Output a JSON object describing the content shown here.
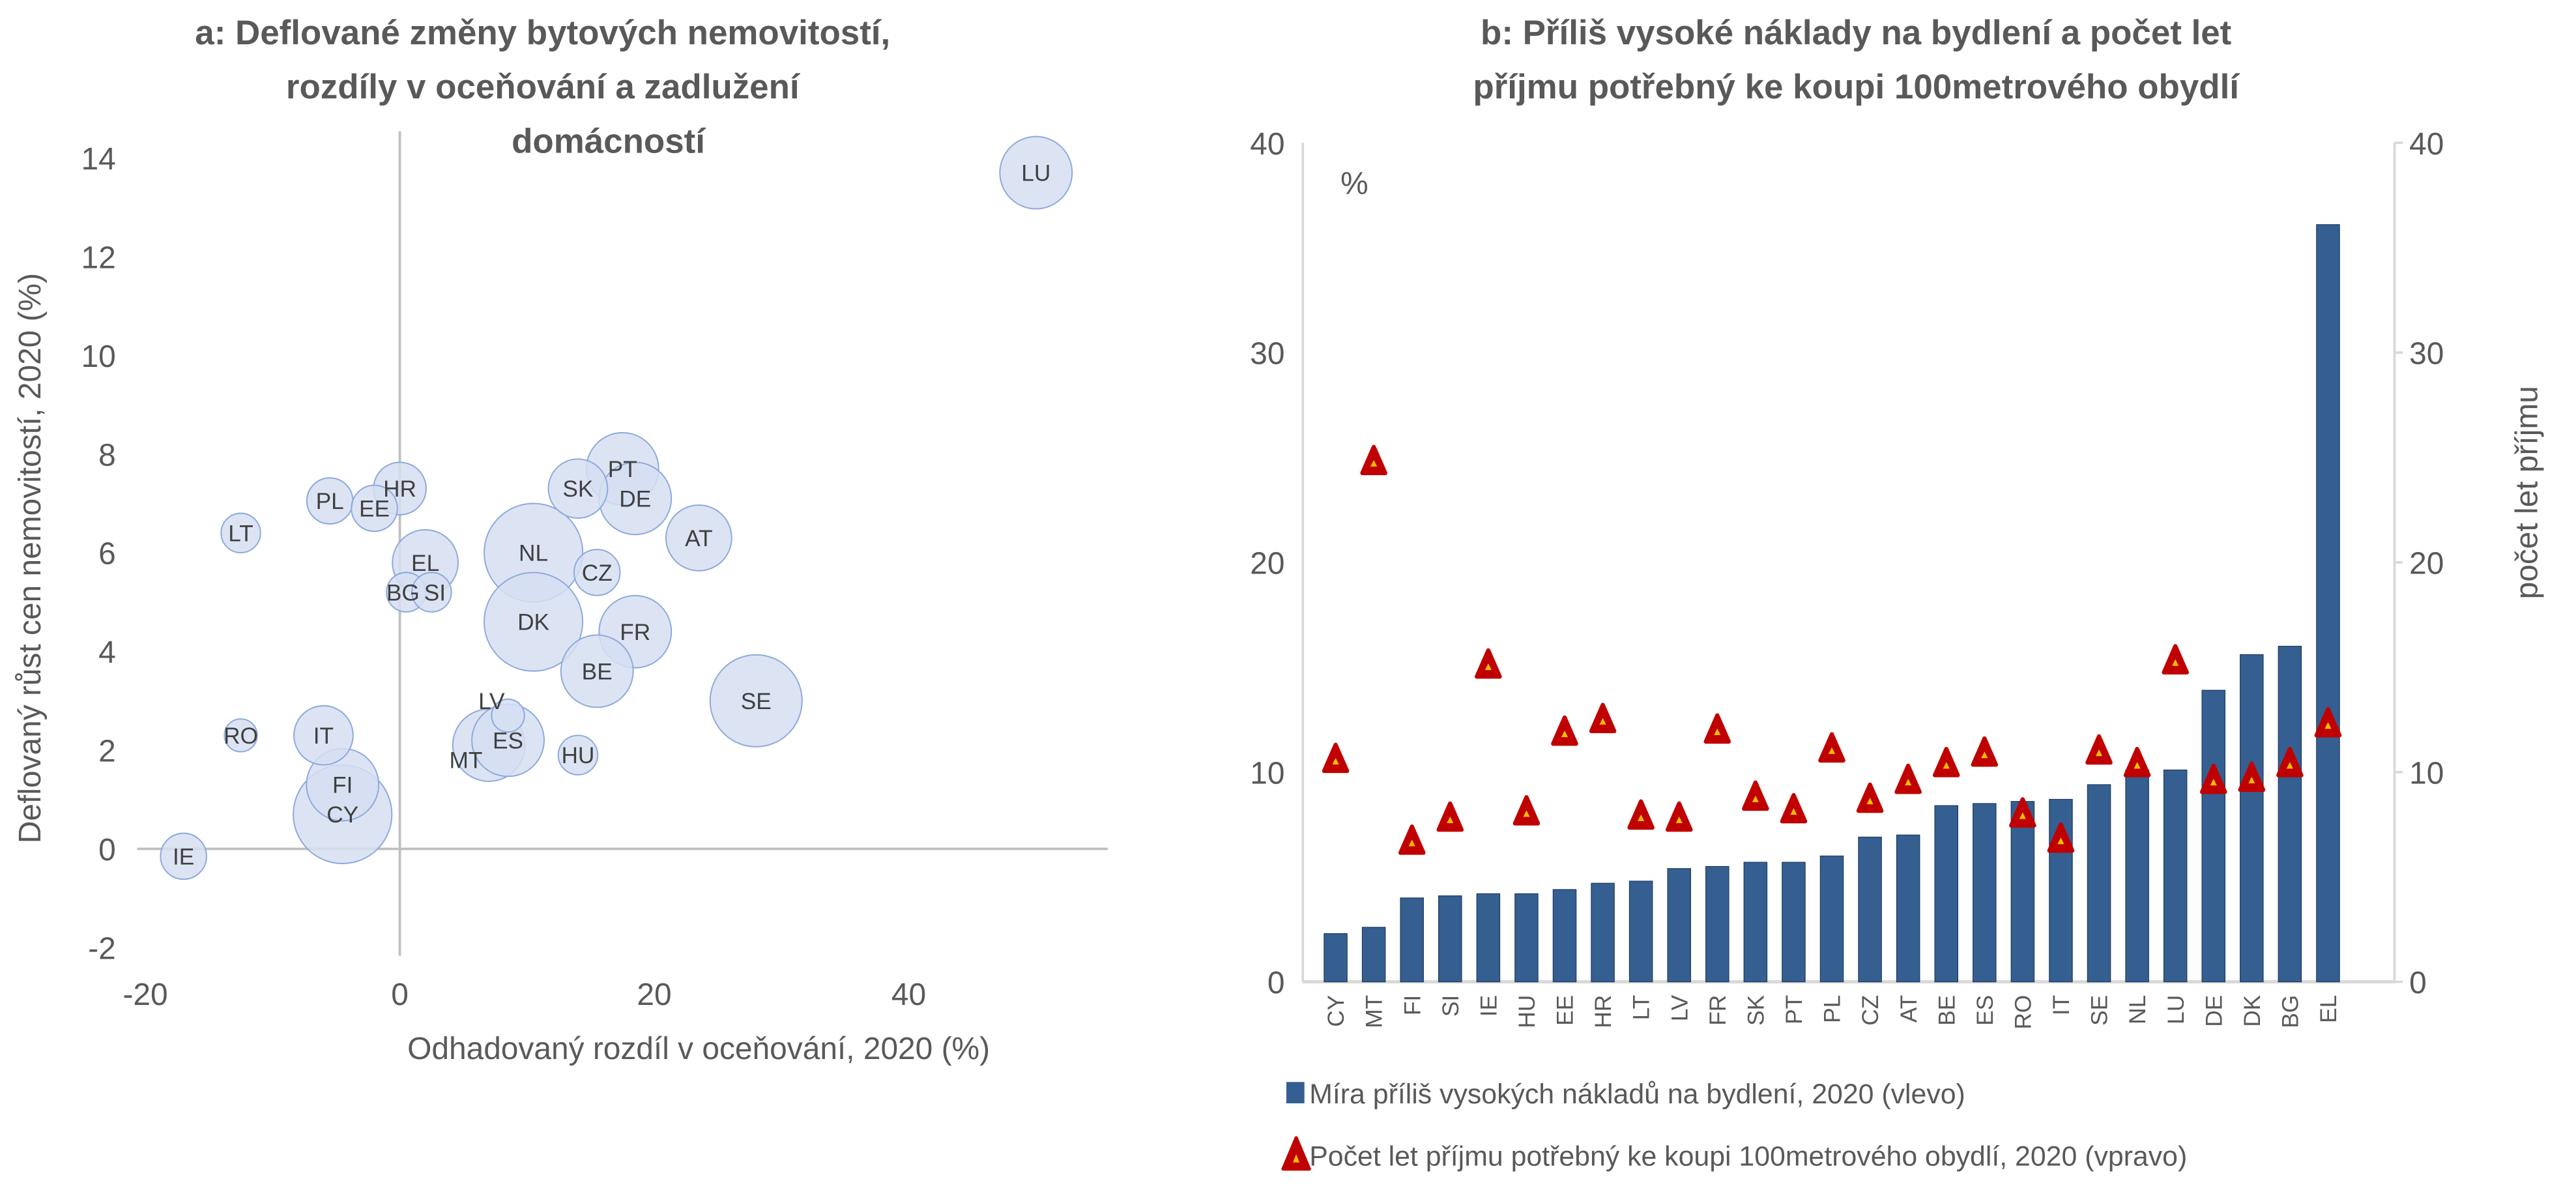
{
  "colors": {
    "bubble_fill": "#d6dff2",
    "bubble_stroke": "#8faadc",
    "bar": "#355f91",
    "marker": "#c00000",
    "marker_inner": "#ffc000",
    "axis": "#bfbfbf",
    "text": "#595959"
  },
  "chart_data": [
    {
      "type": "scatter",
      "subtype": "bubble",
      "title_lines": [
        "a: Deflované změny bytových nemovitostí,",
        "rozdíly v oceňování a zadlužení",
        "domácností"
      ],
      "xlabel": "Odhadovaný rozdíl v oceňování, 2020 (%)",
      "ylabel": "Deflovaný růst cen nemovitostí, 2020 (%)",
      "xlim": [
        -20,
        55
      ],
      "ylim": [
        -2,
        15
      ],
      "xticks": [
        "-20",
        "0",
        "20",
        "40"
      ],
      "xtick_values": [
        -20,
        0,
        20,
        40
      ],
      "yticks": [
        "-2",
        "0",
        "2",
        "4",
        "6",
        "8",
        "10",
        "12",
        "14"
      ],
      "ytick_values": [
        -2,
        0,
        2,
        4,
        6,
        8,
        10,
        12,
        14
      ],
      "points": [
        {
          "label": "LU",
          "x": 50,
          "y": 13.7,
          "size": 22
        },
        {
          "label": "LT",
          "x": -12.5,
          "y": 6.4,
          "size": 12
        },
        {
          "label": "PL",
          "x": -5.5,
          "y": 7.05,
          "size": 14
        },
        {
          "label": "EE",
          "x": -2,
          "y": 6.9,
          "size": 14
        },
        {
          "label": "HR",
          "x": 0,
          "y": 7.3,
          "size": 16
        },
        {
          "label": "EL",
          "x": 2,
          "y": 5.8,
          "size": 20
        },
        {
          "label": "BG",
          "x": 0.5,
          "y": 5.2,
          "size": 12
        },
        {
          "label": "SI",
          "x": 2.5,
          "y": 5.2,
          "size": 12
        },
        {
          "label": "NL",
          "x": 10.5,
          "y": 6.0,
          "size": 30
        },
        {
          "label": "DK",
          "x": 10.5,
          "y": 4.6,
          "size": 30
        },
        {
          "label": "SK",
          "x": 14,
          "y": 7.3,
          "size": 18
        },
        {
          "label": "PT",
          "x": 17.5,
          "y": 7.7,
          "size": 22
        },
        {
          "label": "DE",
          "x": 18.5,
          "y": 7.1,
          "size": 22
        },
        {
          "label": "AT",
          "x": 23.5,
          "y": 6.3,
          "size": 20
        },
        {
          "label": "CZ",
          "x": 15.5,
          "y": 5.6,
          "size": 14
        },
        {
          "label": "FR",
          "x": 18.5,
          "y": 4.4,
          "size": 22
        },
        {
          "label": "BE",
          "x": 15.5,
          "y": 3.6,
          "size": 22
        },
        {
          "label": "SE",
          "x": 28,
          "y": 3.0,
          "size": 28
        },
        {
          "label": "LV",
          "x": 8.5,
          "y": 2.7,
          "size": 10
        },
        {
          "label": "MT",
          "x": 7,
          "y": 2.1,
          "size": 22
        },
        {
          "label": "ES",
          "x": 8.5,
          "y": 2.2,
          "size": 22
        },
        {
          "label": "HU",
          "x": 14,
          "y": 1.9,
          "size": 12
        },
        {
          "label": "RO",
          "x": -12.5,
          "y": 2.3,
          "size": 10
        },
        {
          "label": "IT",
          "x": -6,
          "y": 2.3,
          "size": 18
        },
        {
          "label": "FI",
          "x": -4.5,
          "y": 1.3,
          "size": 22
        },
        {
          "label": "CY",
          "x": -4.5,
          "y": 0.7,
          "size": 30
        },
        {
          "label": "IE",
          "x": -17,
          "y": -0.15,
          "size": 14
        }
      ]
    },
    {
      "type": "bar",
      "title_lines": [
        "b: Příliš vysoké náklady na bydlení a počet let",
        "příjmu potřebný ke koupi 100metrového obydlí"
      ],
      "unit_label": "%",
      "y2label": "počet let příjmu",
      "ylim": [
        0,
        40
      ],
      "y2lim": [
        0,
        40
      ],
      "yticks": [
        "0",
        "10",
        "20",
        "30",
        "40"
      ],
      "ytick_values": [
        0,
        10,
        20,
        30,
        40
      ],
      "categories": [
        "CY",
        "MT",
        "FI",
        "SI",
        "IE",
        "HU",
        "EE",
        "HR",
        "LT",
        "LV",
        "FR",
        "SK",
        "PT",
        "PL",
        "CZ",
        "AT",
        "BE",
        "ES",
        "RO",
        "IT",
        "SE",
        "NL",
        "LU",
        "DE",
        "DK",
        "BG",
        "EL"
      ],
      "series": [
        {
          "name": "Míra příliš vysokých nákladů na bydlení, 2020 (vlevo)",
          "kind": "bar",
          "axis": "left",
          "values": [
            2.3,
            2.6,
            4.0,
            4.1,
            4.2,
            4.2,
            4.4,
            4.7,
            4.8,
            5.4,
            5.5,
            5.7,
            5.7,
            6.0,
            6.9,
            7.0,
            8.4,
            8.5,
            8.6,
            8.7,
            9.4,
            10.1,
            10.1,
            13.9,
            15.6,
            16.0,
            36.1
          ]
        },
        {
          "name": "Počet let příjmu potřebný ke koupi 100metrového obydlí, 2020 (vpravo)",
          "kind": "marker",
          "axis": "right",
          "values": [
            10.6,
            24.8,
            6.7,
            7.8,
            15.1,
            8.1,
            11.9,
            12.5,
            7.9,
            7.8,
            12.0,
            8.8,
            8.2,
            11.1,
            8.7,
            9.6,
            10.4,
            10.9,
            8.0,
            6.8,
            11.0,
            10.4,
            15.3,
            9.6,
            9.7,
            10.4,
            12.3
          ]
        }
      ]
    }
  ]
}
